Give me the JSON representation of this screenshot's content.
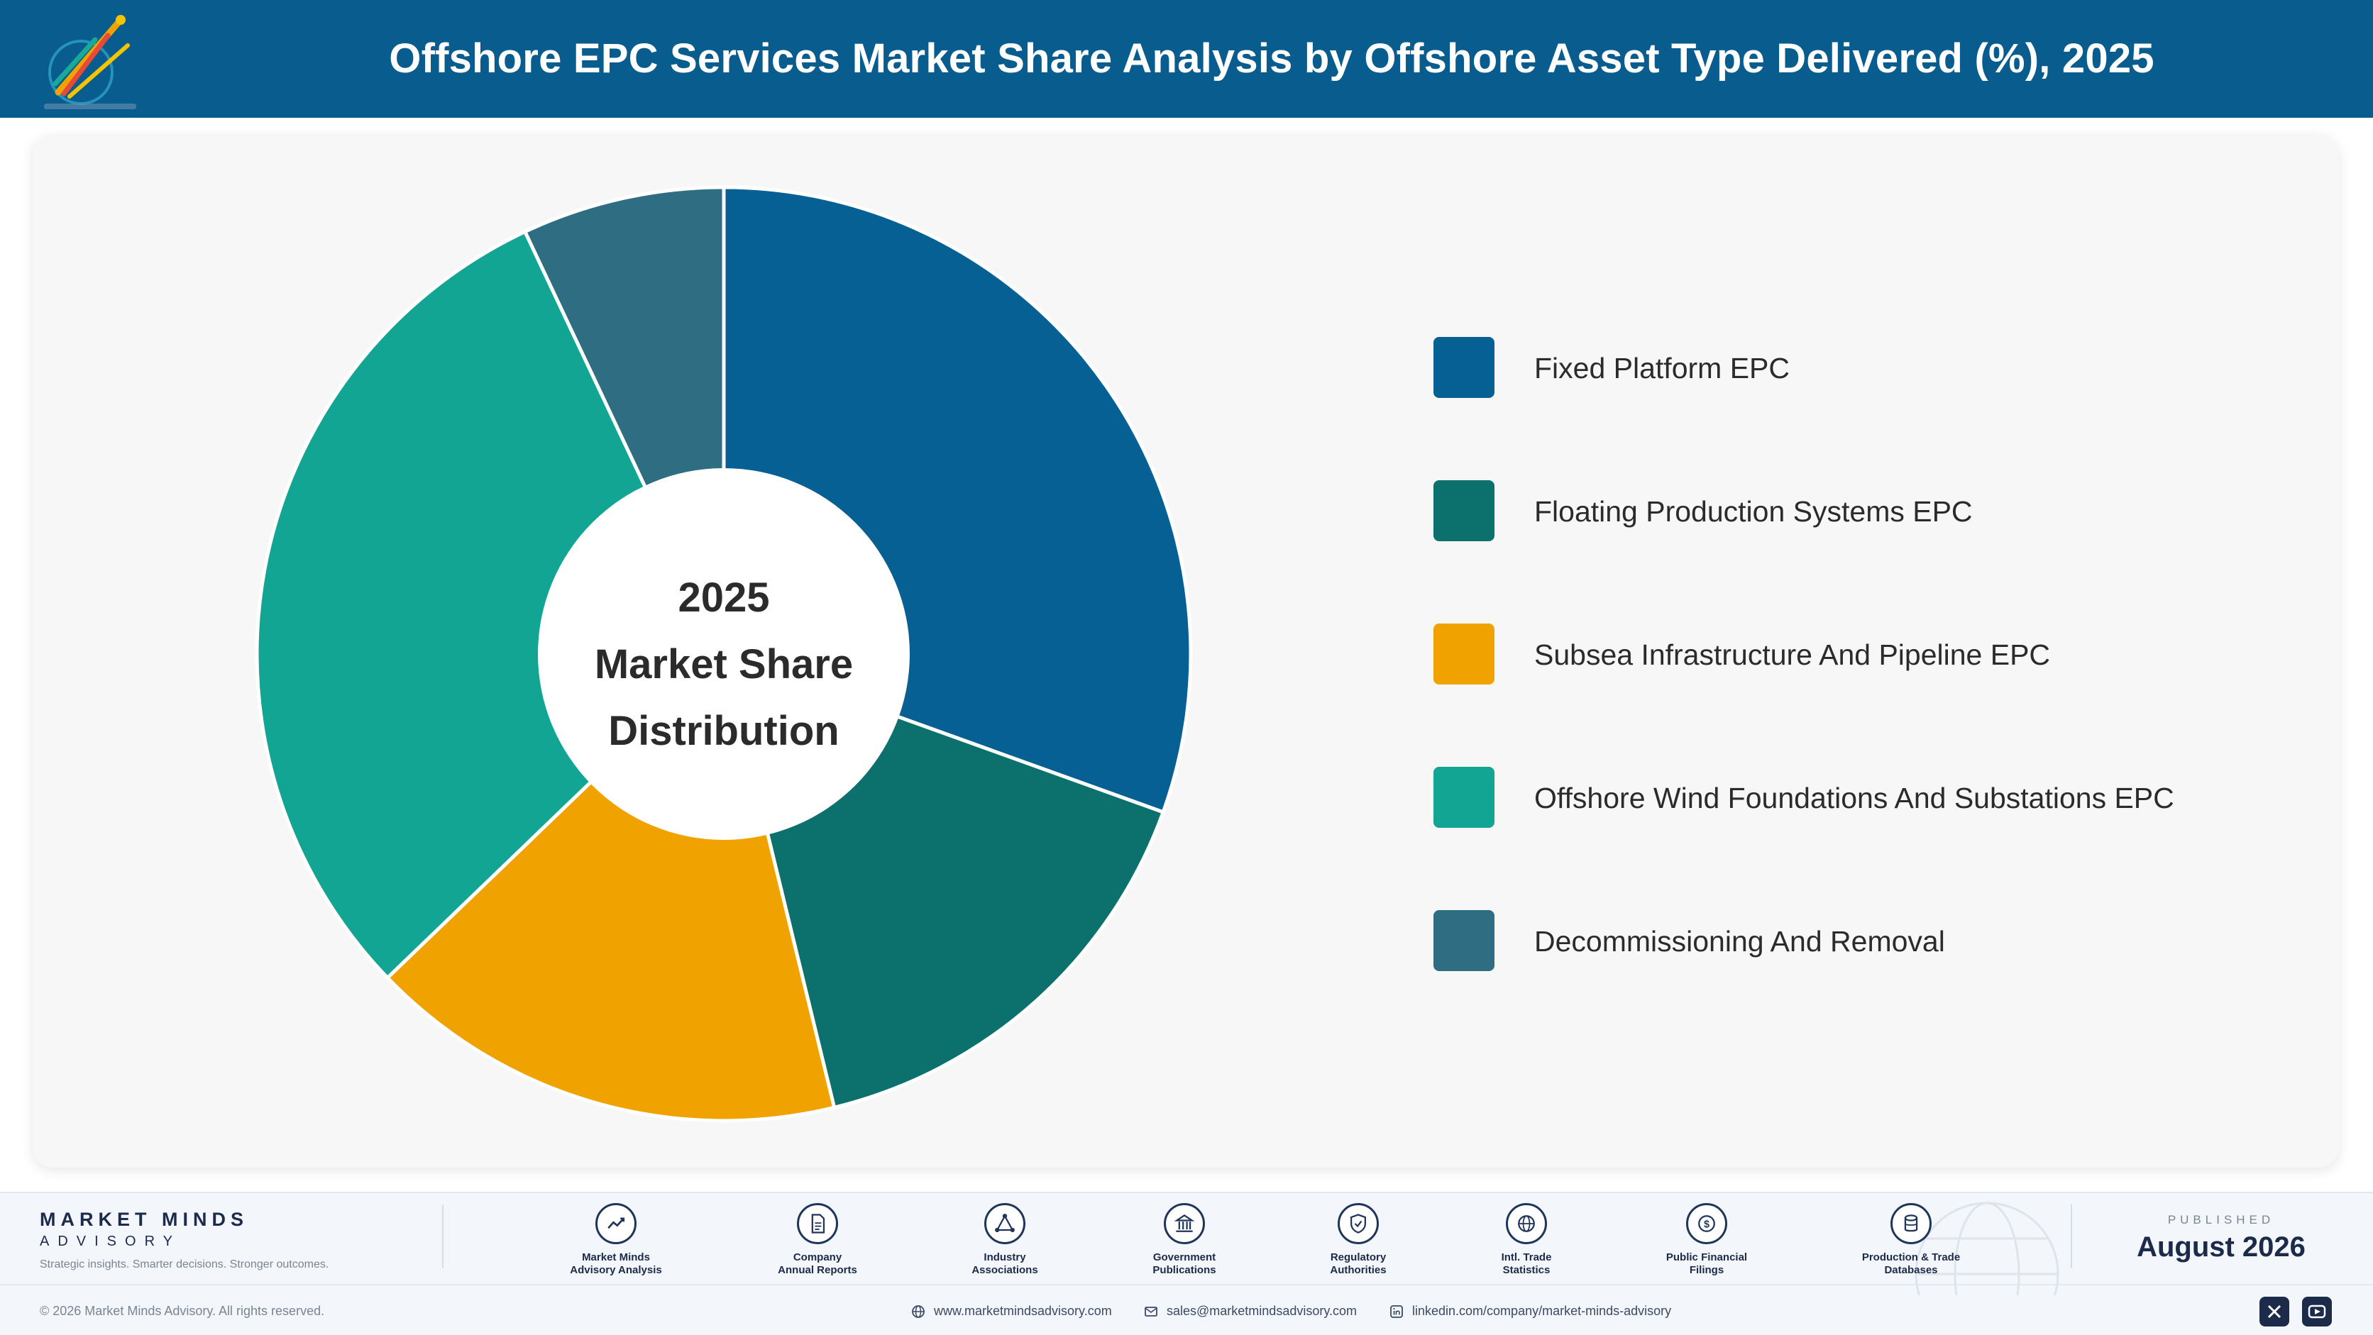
{
  "header": {
    "title": "Offshore EPC Services Market Share Analysis by Offshore Asset Type Delivered (%), 2025",
    "logo_icon": "brand-logo-icon"
  },
  "chart_data": {
    "type": "pie",
    "style": "donut",
    "title": "Offshore EPC Services Market Share Analysis by Offshore Asset Type Delivered (%), 2025",
    "center_label": [
      "2025",
      "Market Share",
      "Distribution"
    ],
    "data_labels": false,
    "legend_position": "right",
    "categories": [
      "Fixed Platform EPC",
      "Floating Production Systems EPC",
      "Subsea Infrastructure And Pipeline EPC",
      "Offshore Wind Foundations And Substations EPC",
      "Decommissioning And Removal"
    ],
    "values": [
      30.5,
      15.7,
      16.6,
      30.2,
      7.0
    ],
    "colors": [
      "#066094",
      "#0c716c",
      "#f0a300",
      "#12a593",
      "#2f6e82"
    ]
  },
  "footer": {
    "brand_name": "MARKET MINDS",
    "brand_sub": "ADVISORY",
    "tagline": "Strategic insights. Smarter decisions. Stronger outcomes.",
    "sources": [
      {
        "label": "Market Minds\nAdvisory Analysis",
        "icon": "trend-line-icon"
      },
      {
        "label": "Company\nAnnual Reports",
        "icon": "document-icon"
      },
      {
        "label": "Industry\nAssociations",
        "icon": "network-icon"
      },
      {
        "label": "Government\nPublications",
        "icon": "government-building-icon"
      },
      {
        "label": "Regulatory\nAuthorities",
        "icon": "shield-check-icon"
      },
      {
        "label": "Intl. Trade\nStatistics",
        "icon": "globe-icon"
      },
      {
        "label": "Public Financial\nFilings",
        "icon": "dollar-coin-icon"
      },
      {
        "label": "Production & Trade\nDatabases",
        "icon": "database-icon"
      }
    ],
    "published_label": "PUBLISHED",
    "published_date": "August 2026",
    "copyright": "© 2026 Market Minds Advisory. All rights reserved.",
    "website": "www.marketmindsadvisory.com",
    "email": "sales@marketmindsadvisory.com",
    "linkedin": "linkedin.com/company/market-minds-advisory",
    "social": [
      {
        "name": "x",
        "icon": "x-icon"
      },
      {
        "name": "youtube",
        "icon": "youtube-icon"
      }
    ]
  }
}
